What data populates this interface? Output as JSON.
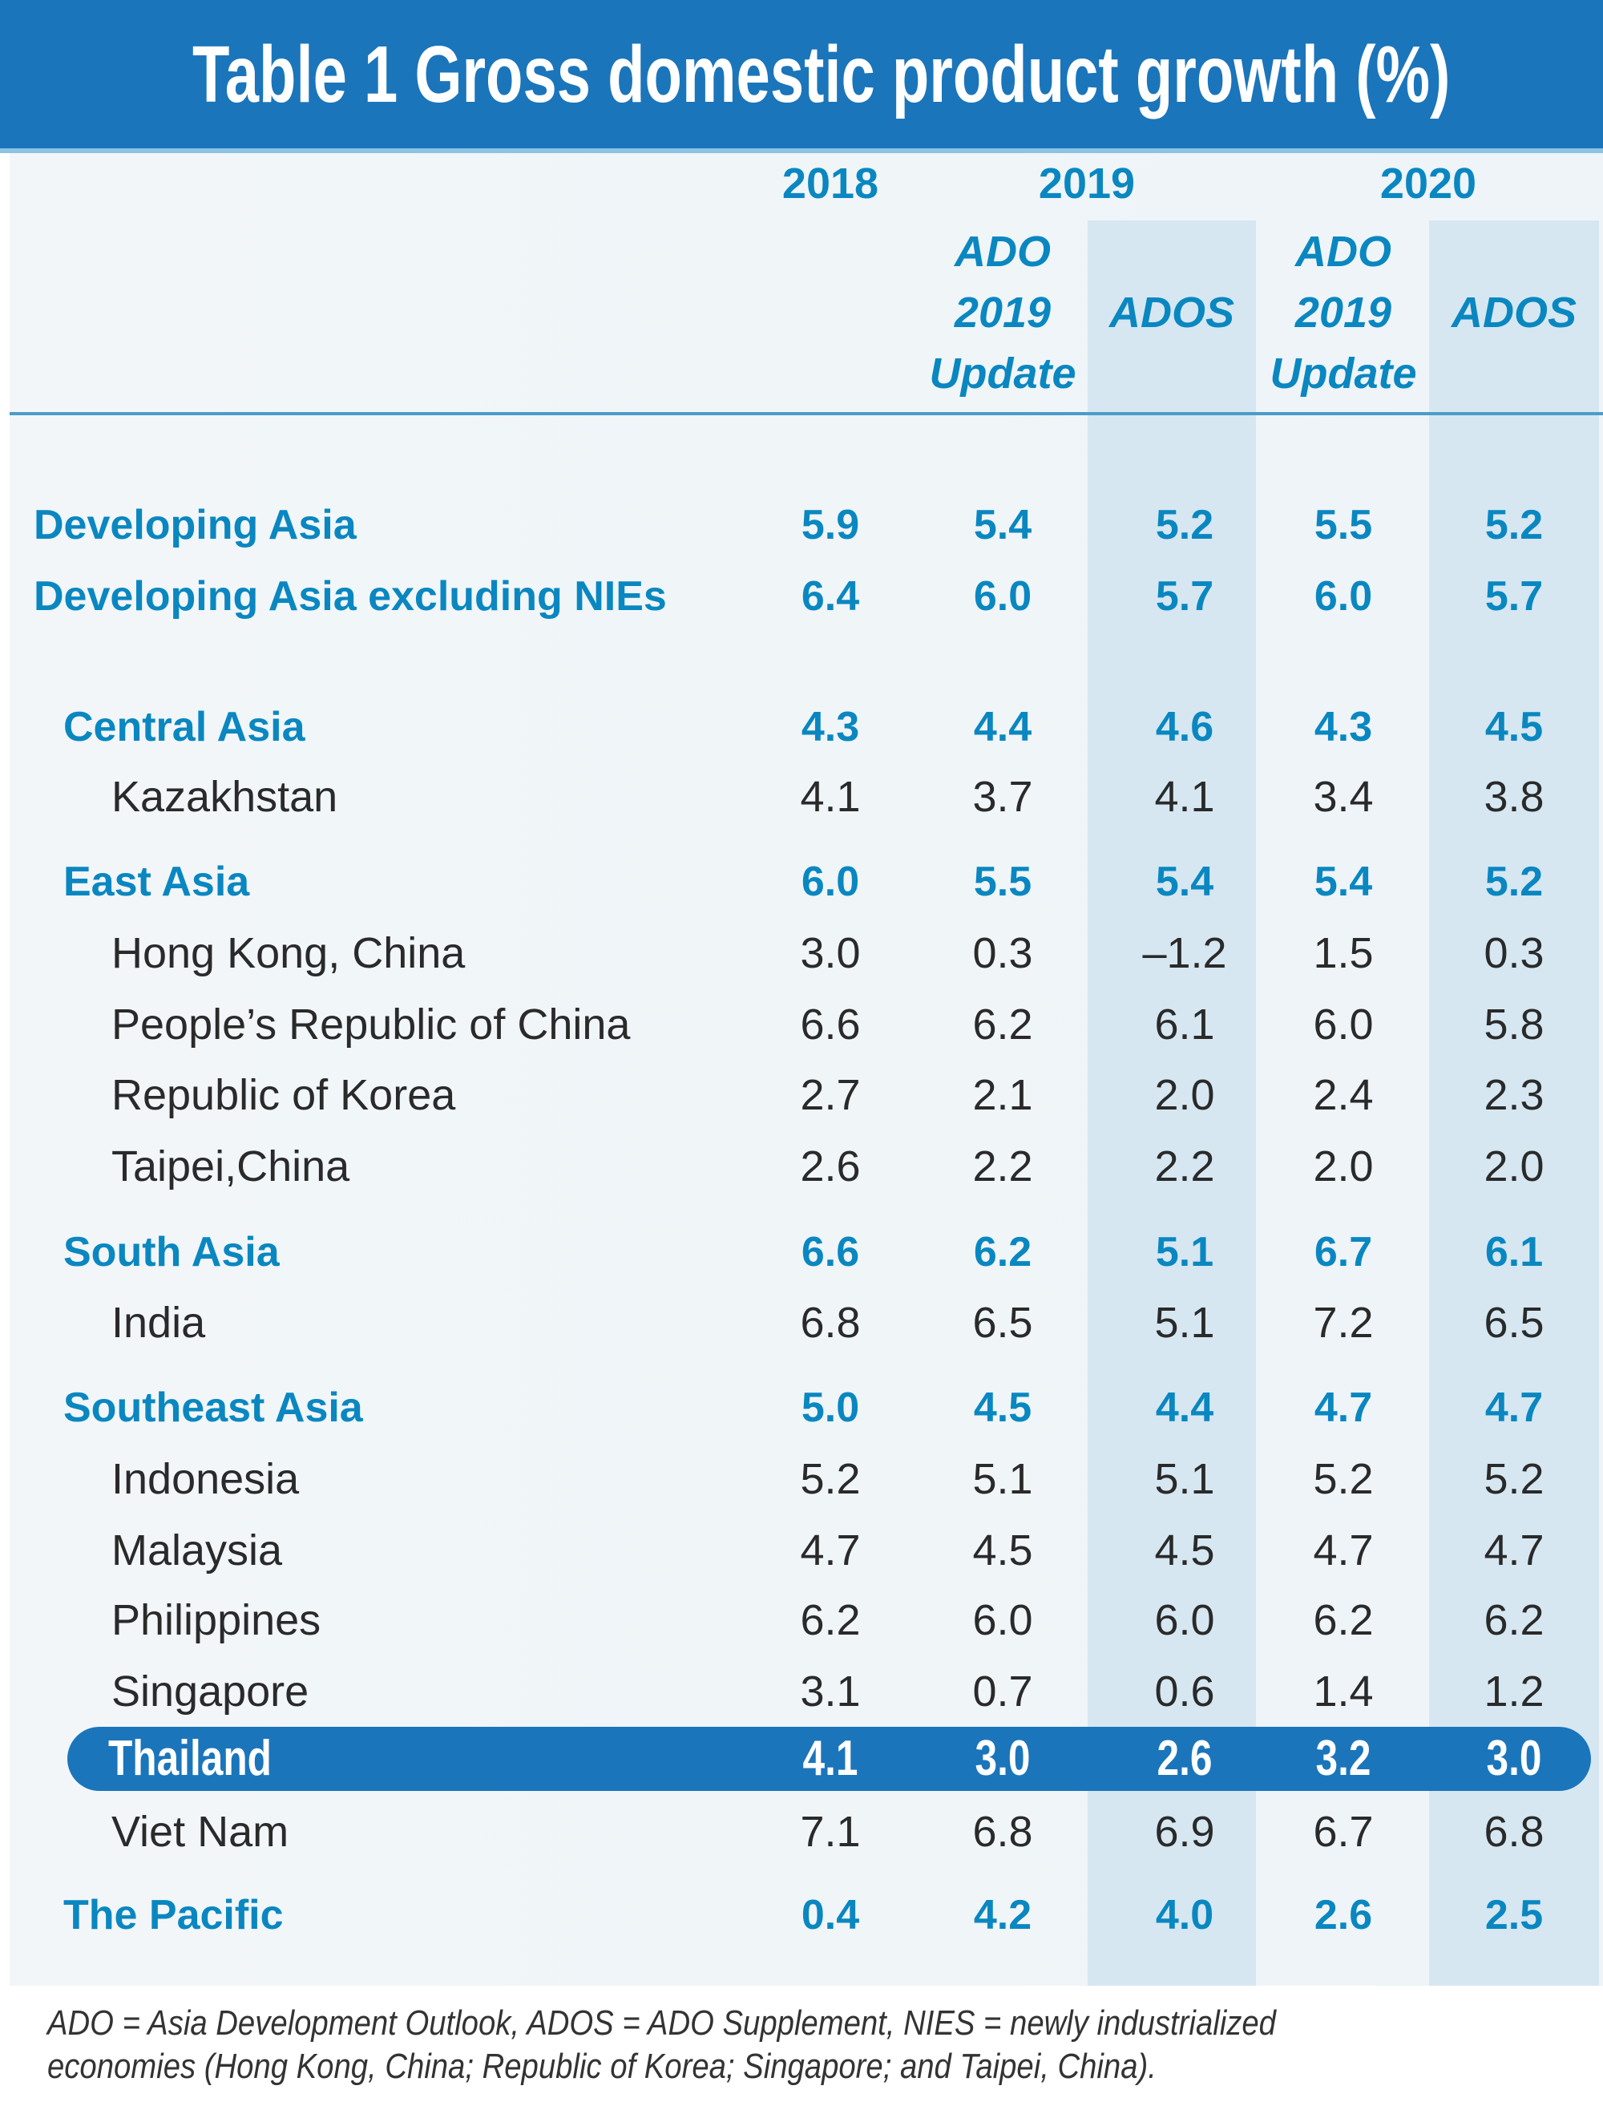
{
  "title": "Table 1 Gross domestic product growth (%)",
  "header": {
    "years": [
      "2018",
      "2019",
      "2020"
    ],
    "columns": [
      {
        "label": ""
      },
      {
        "lines": [
          "ADO",
          "2019",
          "Update"
        ]
      },
      {
        "lines": [
          "ADOS"
        ]
      },
      {
        "lines": [
          "ADO",
          "2019",
          "Update"
        ]
      },
      {
        "lines": [
          "ADOS"
        ]
      }
    ]
  },
  "colors": {
    "title_bar": "#1b75bb",
    "accent_text": "#0a87c0",
    "shaded_column": "#d6e7f2",
    "highlight_row": "#1b75bb"
  },
  "rows": [
    {
      "label": "Developing Asia",
      "level": "top",
      "values": [
        "5.9",
        "5.4",
        "5.2",
        "5.5",
        "5.2"
      ]
    },
    {
      "label": "Developing Asia excluding NIEs",
      "level": "top",
      "values": [
        "6.4",
        "6.0",
        "5.7",
        "6.0",
        "5.7"
      ]
    },
    {
      "label": "Central Asia",
      "level": "region",
      "values": [
        "4.3",
        "4.4",
        "4.6",
        "4.3",
        "4.5"
      ]
    },
    {
      "label": "Kazakhstan",
      "level": "economy",
      "values": [
        "4.1",
        "3.7",
        "4.1",
        "3.4",
        "3.8"
      ]
    },
    {
      "label": "East Asia",
      "level": "region",
      "values": [
        "6.0",
        "5.5",
        "5.4",
        "5.4",
        "5.2"
      ]
    },
    {
      "label": "Hong Kong, China",
      "level": "economy",
      "values": [
        "3.0",
        "0.3",
        "–1.2",
        "1.5",
        "0.3"
      ]
    },
    {
      "label": "People’s Republic of China",
      "level": "economy",
      "values": [
        "6.6",
        "6.2",
        "6.1",
        "6.0",
        "5.8"
      ]
    },
    {
      "label": "Republic of Korea",
      "level": "economy",
      "values": [
        "2.7",
        "2.1",
        "2.0",
        "2.4",
        "2.3"
      ]
    },
    {
      "label": "Taipei,China",
      "level": "economy",
      "values": [
        "2.6",
        "2.2",
        "2.2",
        "2.0",
        "2.0"
      ]
    },
    {
      "label": "South Asia",
      "level": "region",
      "values": [
        "6.6",
        "6.2",
        "5.1",
        "6.7",
        "6.1"
      ]
    },
    {
      "label": "India",
      "level": "economy",
      "values": [
        "6.8",
        "6.5",
        "5.1",
        "7.2",
        "6.5"
      ]
    },
    {
      "label": "Southeast Asia",
      "level": "region",
      "values": [
        "5.0",
        "4.5",
        "4.4",
        "4.7",
        "4.7"
      ]
    },
    {
      "label": "Indonesia",
      "level": "economy",
      "values": [
        "5.2",
        "5.1",
        "5.1",
        "5.2",
        "5.2"
      ]
    },
    {
      "label": "Malaysia",
      "level": "economy",
      "values": [
        "4.7",
        "4.5",
        "4.5",
        "4.7",
        "4.7"
      ]
    },
    {
      "label": "Philippines",
      "level": "economy",
      "values": [
        "6.2",
        "6.0",
        "6.0",
        "6.2",
        "6.2"
      ]
    },
    {
      "label": "Singapore",
      "level": "economy",
      "values": [
        "3.1",
        "0.7",
        "0.6",
        "1.4",
        "1.2"
      ]
    },
    {
      "label": "Thailand",
      "level": "highlight",
      "values": [
        "4.1",
        "3.0",
        "2.6",
        "3.2",
        "3.0"
      ]
    },
    {
      "label": "Viet Nam",
      "level": "economy",
      "values": [
        "7.1",
        "6.8",
        "6.9",
        "6.7",
        "6.8"
      ]
    },
    {
      "label": "The Pacific",
      "level": "region",
      "values": [
        "0.4",
        "4.2",
        "4.0",
        "2.6",
        "2.5"
      ]
    }
  ],
  "footnote": [
    "ADO = Asia Development Outlook, ADOS = ADO Supplement, NIES = newly industrialized",
    "economies (Hong Kong, China; Republic of Korea; Singapore; and Taipei, China)."
  ]
}
